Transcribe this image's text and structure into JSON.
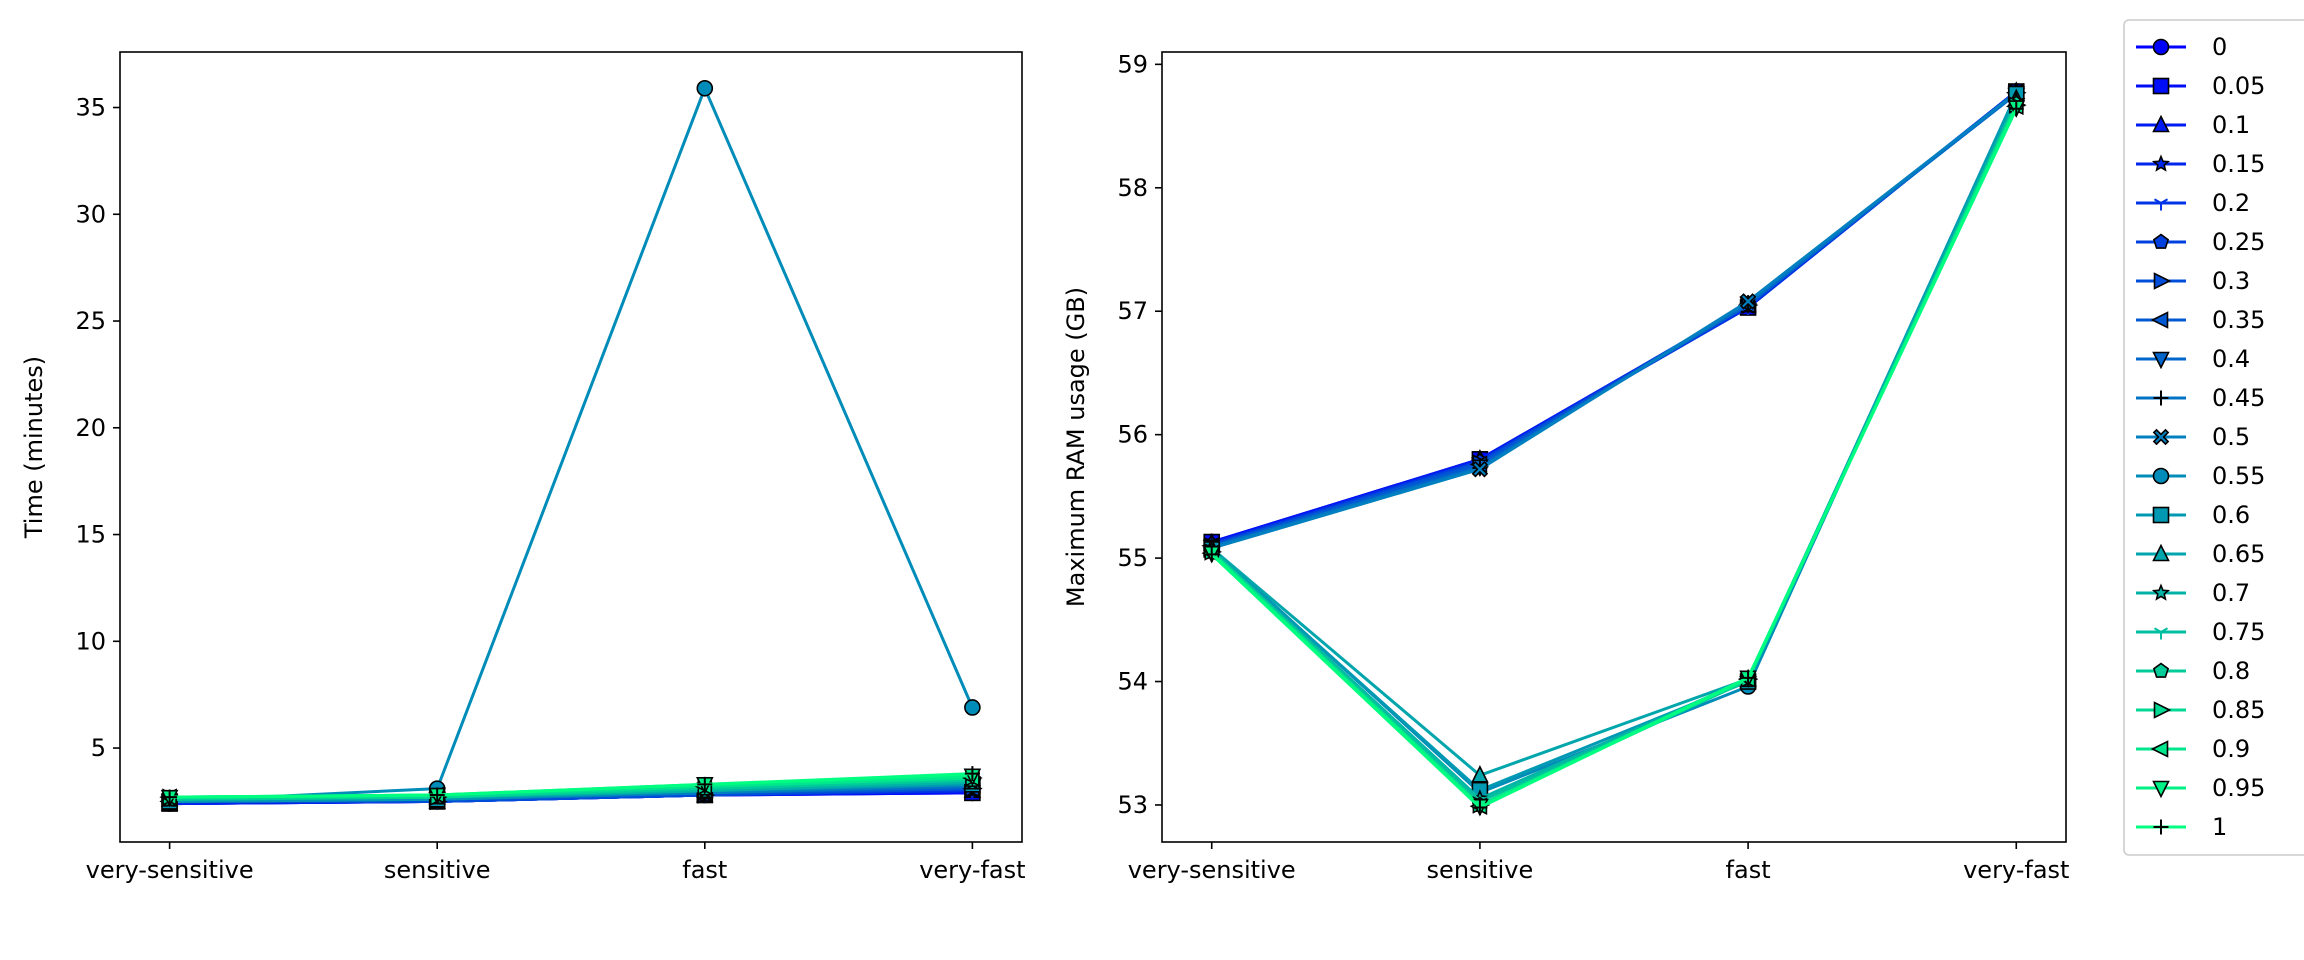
{
  "chart_data": [
    {
      "type": "line",
      "title": "",
      "xlabel": "",
      "ylabel": "Time (minutes)",
      "categories": [
        "very-sensitive",
        "sensitive",
        "fast",
        "very-fast"
      ],
      "ylim": [
        0.6,
        37.6
      ],
      "yticks": [
        5,
        10,
        15,
        20,
        25,
        30,
        35
      ],
      "grid": false,
      "series": [
        {
          "name": "0",
          "values": [
            2.4,
            2.5,
            2.8,
            2.9
          ]
        },
        {
          "name": "0.05",
          "values": [
            2.4,
            2.5,
            2.8,
            2.9
          ]
        },
        {
          "name": "0.1",
          "values": [
            2.4,
            2.5,
            2.8,
            3.0
          ]
        },
        {
          "name": "0.15",
          "values": [
            2.4,
            2.5,
            2.8,
            3.0
          ]
        },
        {
          "name": "0.2",
          "values": [
            2.5,
            2.5,
            2.8,
            3.0
          ]
        },
        {
          "name": "0.25",
          "values": [
            2.5,
            2.5,
            2.8,
            3.1
          ]
        },
        {
          "name": "0.3",
          "values": [
            2.5,
            2.5,
            2.8,
            3.1
          ]
        },
        {
          "name": "0.35",
          "values": [
            2.5,
            2.6,
            2.9,
            3.1
          ]
        },
        {
          "name": "0.4",
          "values": [
            2.5,
            2.6,
            2.9,
            3.2
          ]
        },
        {
          "name": "0.45",
          "values": [
            2.5,
            2.6,
            2.9,
            3.2
          ]
        },
        {
          "name": "0.5",
          "values": [
            2.5,
            2.6,
            2.9,
            3.3
          ]
        },
        {
          "name": "0.55",
          "values": [
            2.5,
            3.1,
            35.9,
            6.9
          ]
        },
        {
          "name": "0.6",
          "values": [
            2.5,
            2.6,
            3.0,
            3.3
          ]
        },
        {
          "name": "0.65",
          "values": [
            2.6,
            2.7,
            3.0,
            3.4
          ]
        },
        {
          "name": "0.7",
          "values": [
            2.6,
            2.7,
            3.0,
            3.4
          ]
        },
        {
          "name": "0.75",
          "values": [
            2.6,
            2.7,
            3.1,
            3.5
          ]
        },
        {
          "name": "0.8",
          "values": [
            2.6,
            2.7,
            3.1,
            3.5
          ]
        },
        {
          "name": "0.85",
          "values": [
            2.7,
            2.7,
            3.2,
            3.6
          ]
        },
        {
          "name": "0.9",
          "values": [
            2.7,
            2.8,
            3.2,
            3.6
          ]
        },
        {
          "name": "0.95",
          "values": [
            2.7,
            2.8,
            3.3,
            3.7
          ]
        },
        {
          "name": "1",
          "values": [
            2.7,
            2.8,
            3.3,
            3.8
          ]
        }
      ]
    },
    {
      "type": "line",
      "title": "",
      "xlabel": "",
      "ylabel": "Maximum RAM usage (GB)",
      "categories": [
        "very-sensitive",
        "sensitive",
        "fast",
        "very-fast"
      ],
      "ylim": [
        52.7,
        59.1
      ],
      "yticks": [
        53,
        54,
        55,
        56,
        57,
        58,
        59
      ],
      "grid": false,
      "series": [
        {
          "name": "0",
          "values": [
            55.13,
            55.8,
            57.05,
            58.78
          ]
        },
        {
          "name": "0.05",
          "values": [
            55.13,
            55.8,
            57.03,
            58.78
          ]
        },
        {
          "name": "0.1",
          "values": [
            55.12,
            55.8,
            57.05,
            58.78
          ]
        },
        {
          "name": "0.15",
          "values": [
            55.12,
            55.79,
            57.04,
            58.78
          ]
        },
        {
          "name": "0.2",
          "values": [
            55.11,
            55.78,
            57.03,
            58.78
          ]
        },
        {
          "name": "0.25",
          "values": [
            55.11,
            55.78,
            57.06,
            58.77
          ]
        },
        {
          "name": "0.3",
          "values": [
            55.1,
            55.77,
            57.05,
            58.77
          ]
        },
        {
          "name": "0.35",
          "values": [
            55.1,
            55.76,
            57.05,
            58.77
          ]
        },
        {
          "name": "0.4",
          "values": [
            55.09,
            55.74,
            57.06,
            58.76
          ]
        },
        {
          "name": "0.45",
          "values": [
            55.09,
            55.73,
            57.07,
            58.77
          ]
        },
        {
          "name": "0.5",
          "values": [
            55.08,
            55.72,
            57.08,
            58.77
          ]
        },
        {
          "name": "0.55",
          "values": [
            55.08,
            53.1,
            53.96,
            58.76
          ]
        },
        {
          "name": "0.6",
          "values": [
            55.07,
            53.12,
            54.0,
            58.76
          ]
        },
        {
          "name": "0.65",
          "values": [
            55.08,
            53.24,
            54.02,
            58.72
          ]
        },
        {
          "name": "0.7",
          "values": [
            55.06,
            53.05,
            54.02,
            58.7
          ]
        },
        {
          "name": "0.75",
          "values": [
            55.06,
            53.03,
            54.01,
            58.69
          ]
        },
        {
          "name": "0.8",
          "values": [
            55.05,
            53.0,
            54.01,
            58.68
          ]
        },
        {
          "name": "0.85",
          "values": [
            55.05,
            53.0,
            54.02,
            58.67
          ]
        },
        {
          "name": "0.9",
          "values": [
            55.04,
            52.99,
            54.02,
            58.66
          ]
        },
        {
          "name": "0.95",
          "values": [
            55.04,
            52.99,
            54.03,
            58.65
          ]
        },
        {
          "name": "1",
          "values": [
            55.03,
            52.98,
            54.03,
            58.64
          ]
        }
      ]
    }
  ],
  "legend": {
    "placement": "right",
    "items": [
      "0",
      "0.05",
      "0.1",
      "0.15",
      "0.2",
      "0.25",
      "0.3",
      "0.35",
      "0.4",
      "0.45",
      "0.5",
      "0.55",
      "0.6",
      "0.65",
      "0.7",
      "0.75",
      "0.8",
      "0.85",
      "0.9",
      "0.95",
      "1"
    ]
  },
  "colors": [
    "#0000ff",
    "#0010f7",
    "#0021ef",
    "#0031e7",
    "#0042df",
    "#0052d7",
    "#0063cf",
    "#0073c7",
    "#0084bf",
    "#0094b7",
    "#00a5af",
    "#00b5a7",
    "#00c69f",
    "#00d697",
    "#00e78f",
    "#00f787",
    "#00ff80",
    "#00ff80",
    "#00ff80",
    "#00ff80",
    "#00ff80"
  ],
  "markers": [
    "circle",
    "square",
    "triangle-up",
    "star",
    "tri-down",
    "pentagon",
    "triangle-right",
    "triangle-left",
    "triangle-down",
    "plus-thin",
    "x-filled",
    "circle",
    "square",
    "triangle-up",
    "star",
    "tri-down",
    "pentagon",
    "triangle-right",
    "triangle-left",
    "triangle-down",
    "plus-thin"
  ]
}
